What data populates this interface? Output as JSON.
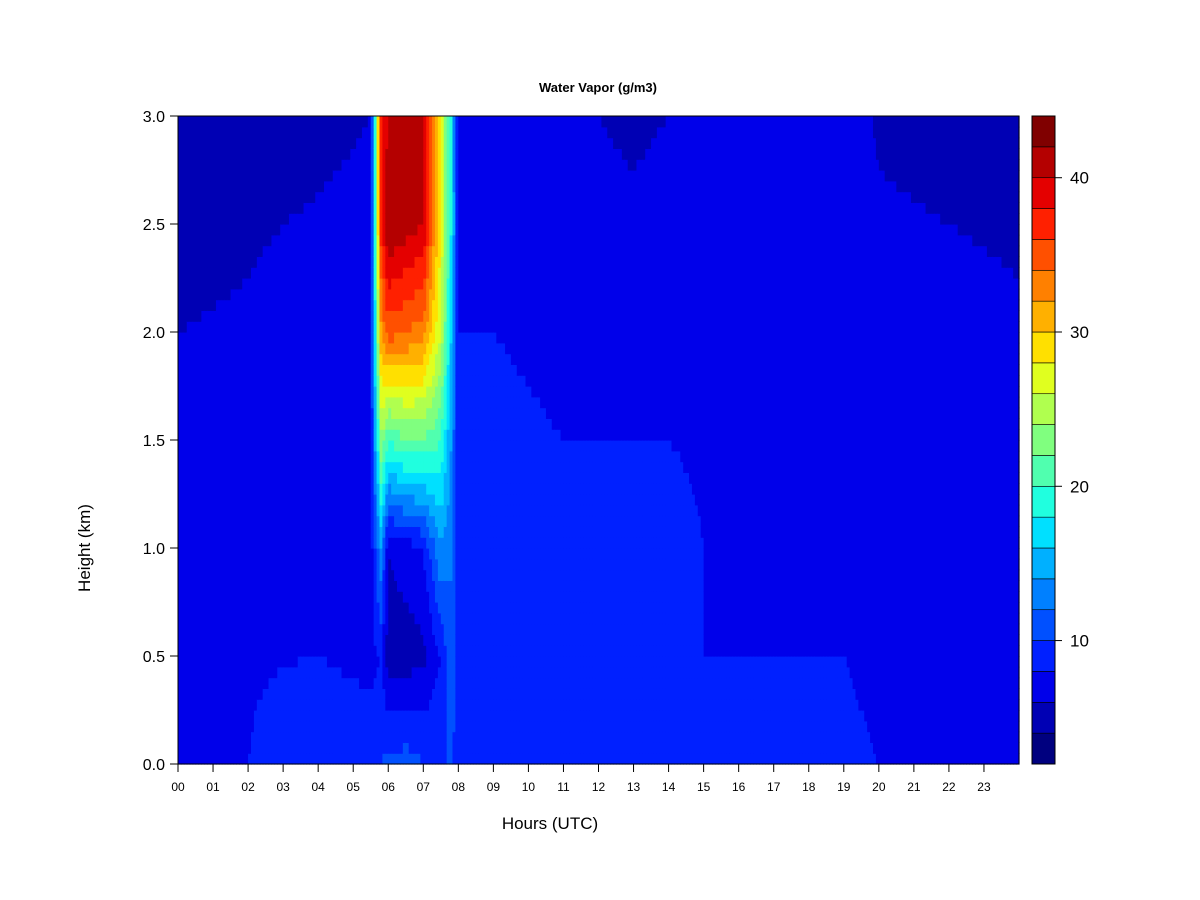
{
  "chart_data": {
    "type": "heatmap",
    "title": "Water Vapor (g/m3)",
    "xlabel": "Hours (UTC)",
    "ylabel": "Height (km)",
    "xlim": [
      0,
      24
    ],
    "ylim": [
      0.0,
      3.0
    ],
    "x_ticks": [
      "00",
      "01",
      "02",
      "03",
      "04",
      "05",
      "06",
      "07",
      "08",
      "09",
      "10",
      "11",
      "12",
      "13",
      "14",
      "15",
      "16",
      "17",
      "18",
      "19",
      "20",
      "21",
      "22",
      "23"
    ],
    "y_ticks": [
      "0.0",
      "0.5",
      "1.0",
      "1.5",
      "2.0",
      "2.5",
      "3.0"
    ],
    "colorbar": {
      "range": [
        2,
        44
      ],
      "ticks": [
        "10",
        "20",
        "30",
        "40"
      ],
      "tick_values": [
        10,
        20,
        30,
        40
      ],
      "levels": [
        2,
        4,
        6,
        8,
        10,
        12,
        14,
        16,
        18,
        20,
        22,
        24,
        26,
        28,
        30,
        32,
        34,
        36,
        38,
        40,
        42,
        44
      ],
      "colors": [
        "#00007f",
        "#0000b4",
        "#0000ea",
        "#0020ff",
        "#0050ff",
        "#0080ff",
        "#00b0ff",
        "#00e0ff",
        "#20ffdf",
        "#50ffaf",
        "#80ff7f",
        "#b0ff4f",
        "#e0ff1f",
        "#ffe000",
        "#ffb000",
        "#ff8000",
        "#ff5000",
        "#ff2000",
        "#e40000",
        "#b40000",
        "#800000"
      ]
    },
    "profiles": [
      {
        "hour": 0.0,
        "values": [
          8.0,
          7.5,
          7.0,
          6.5,
          6.0,
          5.5,
          5.0
        ]
      },
      {
        "hour": 2.0,
        "values": [
          8.0,
          7.8,
          7.2,
          6.8,
          6.2,
          5.8,
          5.0
        ]
      },
      {
        "hour": 4.0,
        "values": [
          9.5,
          8.0,
          7.5,
          7.2,
          6.8,
          6.2,
          5.5
        ]
      },
      {
        "hour": 5.5,
        "values": [
          9.0,
          7.5,
          7.0,
          7.5,
          7.0,
          6.5,
          6.0
        ]
      },
      {
        "hour": 5.8,
        "values": [
          10.0,
          8.0,
          14.0,
          24.0,
          32.0,
          38.0,
          38.0
        ]
      },
      {
        "hour": 6.0,
        "values": [
          10.5,
          5.0,
          6.0,
          20.0,
          35.0,
          42.0,
          40.0
        ]
      },
      {
        "hour": 6.5,
        "values": [
          11.0,
          5.0,
          7.0,
          22.0,
          34.0,
          41.0,
          40.0
        ]
      },
      {
        "hour": 7.0,
        "values": [
          10.0,
          5.5,
          8.0,
          22.0,
          33.0,
          40.0,
          40.0
        ]
      },
      {
        "hour": 7.5,
        "values": [
          10.0,
          8.0,
          14.0,
          20.0,
          26.0,
          28.0,
          28.0
        ]
      },
      {
        "hour": 7.8,
        "values": [
          10.0,
          12.0,
          12.0,
          14.0,
          16.0,
          18.0,
          18.0
        ]
      },
      {
        "hour": 8.0,
        "values": [
          9.0,
          9.0,
          9.0,
          8.5,
          8.0,
          7.5,
          7.0
        ]
      },
      {
        "hour": 9.0,
        "values": [
          8.5,
          9.0,
          9.0,
          8.5,
          8.0,
          7.5,
          7.0
        ]
      },
      {
        "hour": 11.0,
        "values": [
          9.0,
          9.5,
          8.5,
          8.0,
          7.5,
          7.0,
          6.5
        ]
      },
      {
        "hour": 13.0,
        "values": [
          9.0,
          9.0,
          8.5,
          8.0,
          7.5,
          6.5,
          5.5
        ]
      },
      {
        "hour": 14.0,
        "values": [
          9.0,
          9.5,
          8.5,
          8.0,
          7.5,
          7.0,
          6.0
        ]
      },
      {
        "hour": 15.0,
        "values": [
          8.0,
          8.0,
          8.0,
          7.8,
          7.5,
          7.2,
          6.8
        ]
      },
      {
        "hour": 17.0,
        "values": [
          8.0,
          8.0,
          7.8,
          7.5,
          7.5,
          7.2,
          6.8
        ]
      },
      {
        "hour": 19.0,
        "values": [
          8.5,
          8.0,
          8.0,
          7.8,
          7.5,
          7.2,
          6.8
        ]
      },
      {
        "hour": 20.0,
        "values": [
          8.0,
          7.5,
          7.2,
          7.0,
          6.8,
          6.2,
          5.8
        ]
      },
      {
        "hour": 22.0,
        "values": [
          8.0,
          7.5,
          7.0,
          6.8,
          6.5,
          6.0,
          5.5
        ]
      },
      {
        "hour": 24.0,
        "values": [
          8.0,
          7.5,
          7.0,
          6.5,
          6.2,
          5.8,
          5.2
        ]
      }
    ],
    "profile_heights": [
      0.0,
      0.5,
      1.0,
      1.5,
      2.0,
      2.5,
      3.0
    ]
  }
}
